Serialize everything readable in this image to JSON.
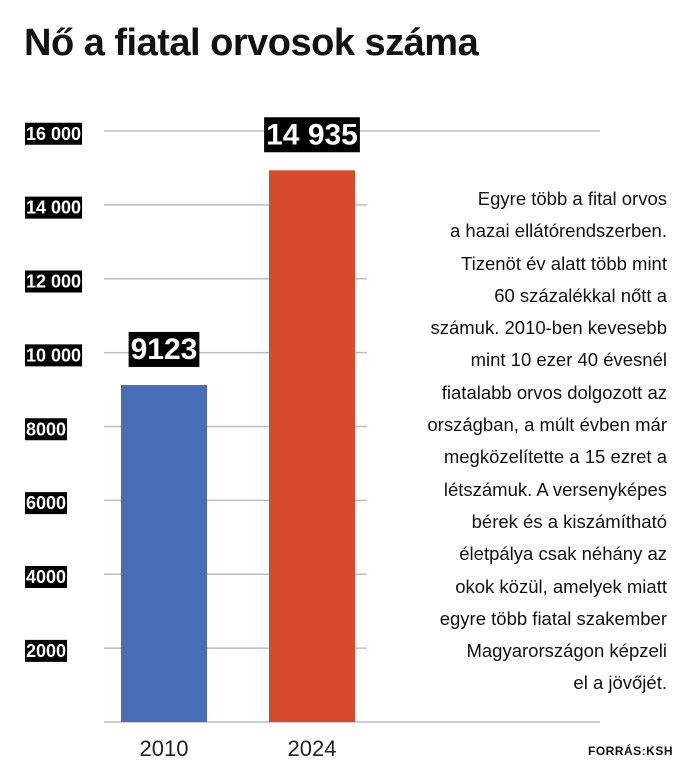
{
  "chart_data": {
    "type": "bar",
    "title": "Nő a fiatal orvosok száma",
    "categories": [
      "2010",
      "2024"
    ],
    "values": [
      9123,
      14935
    ],
    "value_labels": [
      "9123",
      "14 935"
    ],
    "bar_colors": [
      "#4a6db7",
      "#d84b28"
    ],
    "ylim": [
      0,
      16000
    ],
    "yticks": [
      2000,
      4000,
      6000,
      8000,
      10000,
      12000,
      14000,
      16000
    ],
    "ytick_labels": [
      "2000",
      "4000",
      "6000",
      "8000",
      "10 000",
      "12 000",
      "14 000",
      "16 000"
    ],
    "grid": true,
    "xlabel": "",
    "ylabel": ""
  },
  "description_lines": [
    "Egyre több a fital orvos",
    "a hazai ellátórendszerben.",
    "Tizenöt év alatt több mint",
    "60 százalékkal nőtt a",
    "számuk. 2010-ben kevesebb",
    "mint 10 ezer 40 évesnél",
    "fiatalabb orvos dolgozott az",
    "országban, a múlt évben már",
    "megközelítette a 15 ezret a",
    "létszámuk. A versenyképes",
    "bérek és a kiszámítható",
    "életpálya csak néhány az",
    "okok közül, amelyek miatt",
    "egyre több fiatal szakember",
    "Magyarországon képzeli",
    "el a jövőjét."
  ],
  "source": "FORRÁS:KSH"
}
